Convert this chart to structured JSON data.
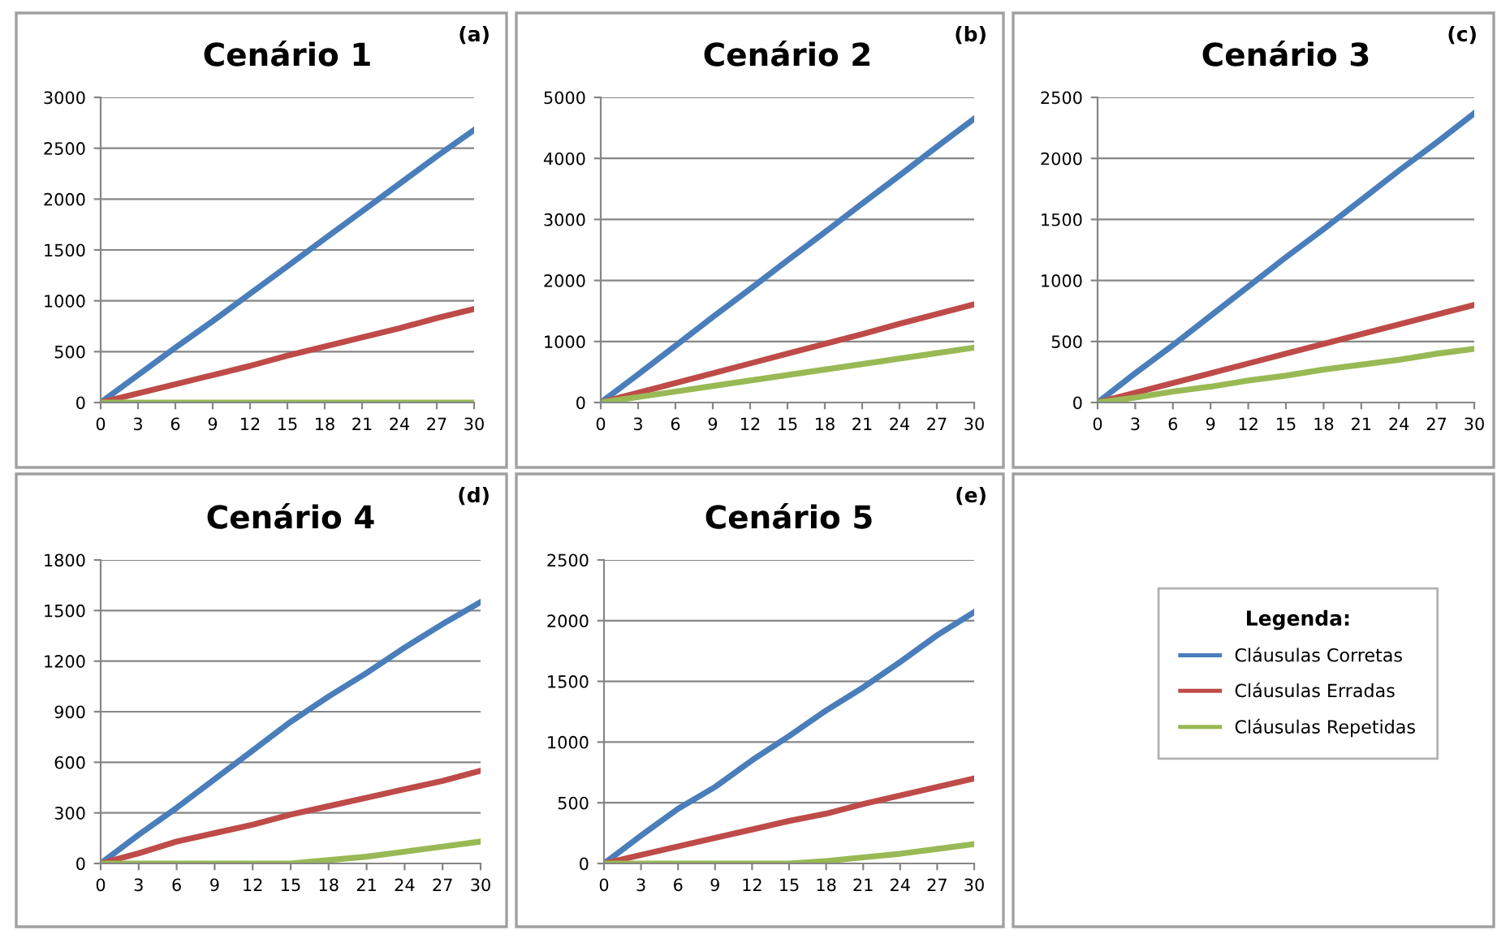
{
  "chart_data": [
    {
      "type": "line",
      "title": "Cenário 1",
      "annotations": [
        "(a)"
      ],
      "x": [
        0,
        3,
        6,
        9,
        12,
        15,
        18,
        21,
        24,
        27,
        30
      ],
      "xlim": [
        0,
        30
      ],
      "xticks": [
        0,
        3,
        6,
        9,
        12,
        15,
        18,
        21,
        24,
        27,
        30
      ],
      "ylim": [
        0,
        3000
      ],
      "yticks": [
        0,
        500,
        1000,
        1500,
        2000,
        2500,
        3000
      ],
      "grid": "y",
      "legend": "bottom right",
      "legend_title": "Legenda:",
      "marker": "none",
      "series": [
        {
          "name": "Cláusulas Corretas",
          "color": "#4a7ebb",
          "values": [
            0,
            270,
            540,
            800,
            1070,
            1340,
            1610,
            1880,
            2150,
            2420,
            2680
          ]
        },
        {
          "name": "Cláusulas Erradas",
          "color": "#be4b48",
          "values": [
            0,
            90,
            180,
            270,
            360,
            460,
            550,
            640,
            730,
            830,
            920
          ]
        },
        {
          "name": "Cláusulas Repetidas",
          "color": "#98b954",
          "values": [
            0,
            0,
            0,
            0,
            0,
            0,
            0,
            0,
            0,
            0,
            0
          ]
        }
      ]
    },
    {
      "type": "line",
      "title": "Cenário 2",
      "annotations": [
        "(b)"
      ],
      "x": [
        0,
        3,
        6,
        9,
        12,
        15,
        18,
        21,
        24,
        27,
        30
      ],
      "xlim": [
        0,
        30
      ],
      "xticks": [
        0,
        3,
        6,
        9,
        12,
        15,
        18,
        21,
        24,
        27,
        30
      ],
      "ylim": [
        0,
        5000
      ],
      "yticks": [
        0,
        1000,
        2000,
        3000,
        4000,
        5000
      ],
      "grid": "y",
      "marker": "none",
      "series": [
        {
          "color": "#4a7ebb",
          "values": [
            0,
            460,
            930,
            1400,
            1860,
            2330,
            2790,
            3260,
            3720,
            4190,
            4650
          ]
        },
        {
          "color": "#be4b48",
          "values": [
            0,
            160,
            320,
            480,
            640,
            800,
            960,
            1120,
            1290,
            1450,
            1610
          ]
        },
        {
          "color": "#98b954",
          "values": [
            0,
            90,
            180,
            270,
            360,
            450,
            540,
            630,
            720,
            810,
            900
          ]
        }
      ]
    },
    {
      "type": "line",
      "title": "Cenário 3",
      "annotations": [
        "(c)"
      ],
      "x": [
        0,
        3,
        6,
        9,
        12,
        15,
        18,
        21,
        24,
        27,
        30
      ],
      "xlim": [
        0,
        30
      ],
      "xticks": [
        0,
        3,
        6,
        9,
        12,
        15,
        18,
        21,
        24,
        27,
        30
      ],
      "ylim": [
        0,
        2500
      ],
      "yticks": [
        0,
        500,
        1000,
        1500,
        2000,
        2500
      ],
      "grid": "y",
      "marker": "none",
      "series": [
        {
          "color": "#4a7ebb",
          "values": [
            0,
            240,
            470,
            710,
            950,
            1190,
            1420,
            1660,
            1900,
            2130,
            2370
          ]
        },
        {
          "color": "#be4b48",
          "values": [
            0,
            80,
            160,
            240,
            320,
            400,
            480,
            560,
            640,
            720,
            800
          ]
        },
        {
          "color": "#98b954",
          "values": [
            0,
            40,
            90,
            130,
            180,
            220,
            270,
            310,
            350,
            400,
            440
          ]
        }
      ]
    },
    {
      "type": "line",
      "title": "Cenário 4",
      "annotations": [
        "(d)"
      ],
      "x": [
        0,
        3,
        6,
        9,
        12,
        15,
        18,
        21,
        24,
        27,
        30
      ],
      "xlim": [
        0,
        30
      ],
      "xticks": [
        0,
        3,
        6,
        9,
        12,
        15,
        18,
        21,
        24,
        27,
        30
      ],
      "ylim": [
        0,
        1800
      ],
      "yticks": [
        0,
        300,
        600,
        900,
        1200,
        1500,
        1800
      ],
      "grid": "y",
      "marker": "none",
      "series": [
        {
          "color": "#4a7ebb",
          "values": [
            0,
            170,
            330,
            500,
            670,
            840,
            990,
            1130,
            1280,
            1420,
            1550
          ]
        },
        {
          "color": "#be4b48",
          "values": [
            0,
            60,
            130,
            180,
            230,
            290,
            340,
            390,
            440,
            490,
            550
          ]
        },
        {
          "color": "#98b954",
          "values": [
            0,
            0,
            0,
            0,
            0,
            0,
            20,
            40,
            70,
            100,
            130
          ]
        }
      ]
    },
    {
      "type": "line",
      "title": "Cenário 5",
      "annotations": [
        "(e)"
      ],
      "x": [
        0,
        3,
        6,
        9,
        12,
        15,
        18,
        21,
        24,
        27,
        30
      ],
      "xlim": [
        0,
        30
      ],
      "xticks": [
        0,
        3,
        6,
        9,
        12,
        15,
        18,
        21,
        24,
        27,
        30
      ],
      "ylim": [
        0,
        2500
      ],
      "yticks": [
        0,
        500,
        1000,
        1500,
        2000,
        2500
      ],
      "grid": "y",
      "marker": "none",
      "series": [
        {
          "color": "#4a7ebb",
          "values": [
            0,
            230,
            450,
            630,
            850,
            1050,
            1260,
            1450,
            1660,
            1880,
            2070
          ]
        },
        {
          "color": "#be4b48",
          "values": [
            0,
            70,
            140,
            210,
            280,
            350,
            410,
            490,
            560,
            630,
            700
          ]
        },
        {
          "color": "#98b954",
          "values": [
            0,
            0,
            0,
            0,
            0,
            0,
            20,
            50,
            80,
            120,
            160
          ]
        }
      ]
    }
  ]
}
